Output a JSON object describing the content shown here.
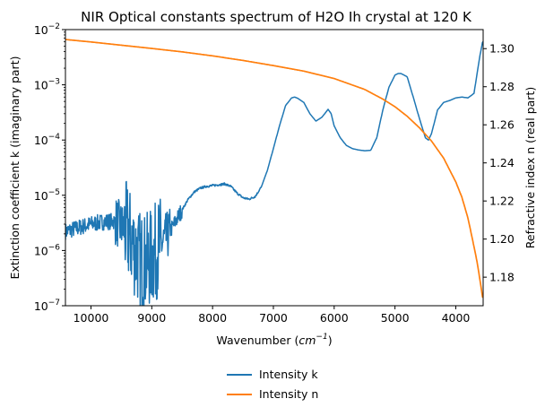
{
  "chart_data": {
    "type": "line",
    "title": "NIR Optical constants spectrum of H2O Ih crystal at 120 K",
    "xlabel_main": "Wavenumber (",
    "xlabel_unit": "cm",
    "xlabel_exp": "−1",
    "xlabel_close": ")",
    "ylabel_left": "Extinction coefficient k (imaginary part)",
    "ylabel_right": "Refractive index n (real part)",
    "xlim": [
      10420,
      3550
    ],
    "x_inverted": true,
    "ylim_left": [
      1e-07,
      0.01
    ],
    "yscale_left": "log",
    "ylim_right": [
      1.165,
      1.31
    ],
    "x_ticks": [
      {
        "value": 10000,
        "label": "10000"
      },
      {
        "value": 9000,
        "label": "9000"
      },
      {
        "value": 8000,
        "label": "8000"
      },
      {
        "value": 7000,
        "label": "7000"
      },
      {
        "value": 6000,
        "label": "6000"
      },
      {
        "value": 5000,
        "label": "5000"
      },
      {
        "value": 4000,
        "label": "4000"
      }
    ],
    "y_left_ticks": [
      {
        "exp": -7,
        "base": "10",
        "sup": "−7"
      },
      {
        "exp": -6,
        "base": "10",
        "sup": "−6"
      },
      {
        "exp": -5,
        "base": "10",
        "sup": "−5"
      },
      {
        "exp": -4,
        "base": "10",
        "sup": "−4"
      },
      {
        "exp": -3,
        "base": "10",
        "sup": "−3"
      },
      {
        "exp": -2,
        "base": "10",
        "sup": "−2"
      }
    ],
    "y_right_ticks": [
      {
        "value": 1.18,
        "label": "1.18"
      },
      {
        "value": 1.2,
        "label": "1.20"
      },
      {
        "value": 1.22,
        "label": "1.22"
      },
      {
        "value": 1.24,
        "label": "1.24"
      },
      {
        "value": 1.26,
        "label": "1.26"
      },
      {
        "value": 1.28,
        "label": "1.28"
      },
      {
        "value": 1.3,
        "label": "1.30"
      }
    ],
    "series": [
      {
        "name": "Intensity k",
        "axis": "left",
        "color": "#1f77b4",
        "x": [
          10420,
          10200,
          10000,
          9800,
          9600,
          9400,
          9300,
          9200,
          9100,
          9000,
          8900,
          8800,
          8700,
          8600,
          8500,
          8400,
          8300,
          8200,
          8100,
          8000,
          7900,
          7800,
          7700,
          7600,
          7500,
          7400,
          7300,
          7200,
          7100,
          7000,
          6900,
          6800,
          6700,
          6650,
          6600,
          6500,
          6400,
          6300,
          6200,
          6100,
          6050,
          6000,
          5900,
          5800,
          5700,
          5600,
          5500,
          5400,
          5300,
          5200,
          5100,
          5000,
          4950,
          4900,
          4800,
          4700,
          4600,
          4500,
          4450,
          4400,
          4300,
          4200,
          4100,
          4000,
          3900,
          3800,
          3700,
          3650,
          3600,
          3560
        ],
        "y": [
          2.2e-06,
          2.6e-06,
          3e-06,
          3.3e-06,
          3.4e-06,
          2.2e-06,
          1.2e-06,
          7e-07,
          6e-07,
          7.5e-07,
          1.1e-06,
          1.5e-06,
          2.2e-06,
          3.5e-06,
          5.5e-06,
          8.5e-06,
          1.15e-05,
          1.35e-05,
          1.45e-05,
          1.5e-05,
          1.55e-05,
          1.6e-05,
          1.45e-05,
          1.1e-05,
          9e-06,
          8.5e-06,
          9.5e-06,
          1.4e-05,
          2.8e-05,
          7e-05,
          0.00018,
          0.00042,
          0.00058,
          0.0006,
          0.00057,
          0.00048,
          0.0003,
          0.00022,
          0.00026,
          0.00036,
          0.0003,
          0.00018,
          0.00011,
          8e-05,
          7e-05,
          6.6e-05,
          6.4e-05,
          6.5e-05,
          0.00011,
          0.00035,
          0.0009,
          0.0015,
          0.0016,
          0.0016,
          0.0014,
          0.0006,
          0.00025,
          0.00011,
          0.0001,
          0.00013,
          0.00035,
          0.00048,
          0.00052,
          0.00058,
          0.0006,
          0.00058,
          0.0007,
          0.0016,
          0.0035,
          0.006
        ],
        "noise_below_x": 8500
      },
      {
        "name": "Intensity n",
        "axis": "right",
        "color": "#ff7f0e",
        "x": [
          10420,
          10000,
          9500,
          9000,
          8500,
          8000,
          7500,
          7000,
          6500,
          6000,
          5500,
          5200,
          5000,
          4800,
          4600,
          4400,
          4200,
          4000,
          3900,
          3800,
          3700,
          3650,
          3600,
          3560
        ],
        "y": [
          1.3048,
          1.3035,
          1.3018,
          1.3001,
          1.2983,
          1.2962,
          1.2938,
          1.2911,
          1.2882,
          1.2843,
          1.2786,
          1.2735,
          1.2695,
          1.2645,
          1.2585,
          1.2515,
          1.2425,
          1.23,
          1.222,
          1.211,
          1.196,
          1.188,
          1.178,
          1.1695
        ]
      }
    ],
    "legend": {
      "position": "bottom-center",
      "entries": [
        {
          "label": "Intensity k",
          "color": "#1f77b4"
        },
        {
          "label": "Intensity n",
          "color": "#ff7f0e"
        }
      ]
    },
    "grid": false
  }
}
